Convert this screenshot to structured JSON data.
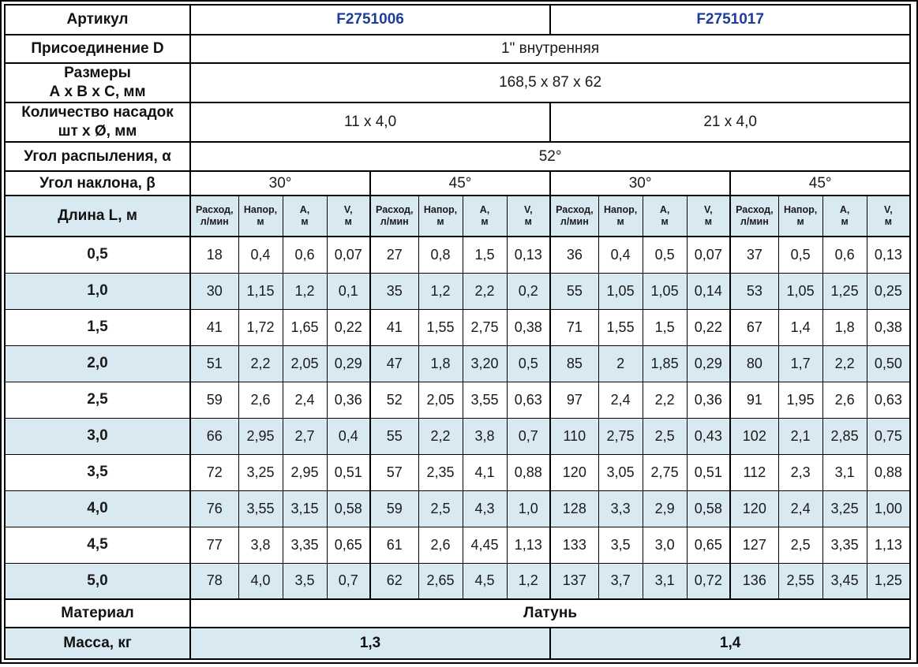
{
  "colors": {
    "article_blue": "#1e3d98",
    "stripe_blue": "#d9e9f2",
    "border_black": "#000000"
  },
  "specs": {
    "article": {
      "label": "Артикул",
      "values": [
        "F2751006",
        "F2751017"
      ]
    },
    "connection": {
      "label": "Присоединение D",
      "value": "1\" внутренняя"
    },
    "dimensions": {
      "label_line1": "Размеры",
      "label_line2": "А х В х С, мм",
      "value": "168,5 х 87 х 62"
    },
    "nozzles": {
      "label_line1": "Количество насадок",
      "label_line2": "шт х Ø, мм",
      "values": [
        "11 х 4,0",
        "21 х 4,0"
      ]
    },
    "spray_angle": {
      "label": "Угол распыления, α",
      "value": "52°"
    },
    "tilt_angle": {
      "label": "Угол наклона, β",
      "values": [
        "30°",
        "45°",
        "30°",
        "45°"
      ]
    },
    "material": {
      "label": "Материал",
      "value": "Латунь"
    },
    "mass": {
      "label": "Масса, кг",
      "values": [
        "1,3",
        "1,4"
      ]
    }
  },
  "data_table": {
    "length_header": "Длина L, м",
    "sub_columns": [
      [
        "Расход,",
        "л/мин"
      ],
      [
        "Напор,",
        "м"
      ],
      [
        "А,",
        "м"
      ],
      [
        "V,",
        "м"
      ]
    ],
    "rows": [
      {
        "length": "0,5",
        "values": [
          "18",
          "0,4",
          "0,6",
          "0,07",
          "27",
          "0,8",
          "1,5",
          "0,13",
          "36",
          "0,4",
          "0,5",
          "0,07",
          "37",
          "0,5",
          "0,6",
          "0,13"
        ]
      },
      {
        "length": "1,0",
        "values": [
          "30",
          "1,15",
          "1,2",
          "0,1",
          "35",
          "1,2",
          "2,2",
          "0,2",
          "55",
          "1,05",
          "1,05",
          "0,14",
          "53",
          "1,05",
          "1,25",
          "0,25"
        ]
      },
      {
        "length": "1,5",
        "values": [
          "41",
          "1,72",
          "1,65",
          "0,22",
          "41",
          "1,55",
          "2,75",
          "0,38",
          "71",
          "1,55",
          "1,5",
          "0,22",
          "67",
          "1,4",
          "1,8",
          "0,38"
        ]
      },
      {
        "length": "2,0",
        "values": [
          "51",
          "2,2",
          "2,05",
          "0,29",
          "47",
          "1,8",
          "3,20",
          "0,5",
          "85",
          "2",
          "1,85",
          "0,29",
          "80",
          "1,7",
          "2,2",
          "0,50"
        ]
      },
      {
        "length": "2,5",
        "values": [
          "59",
          "2,6",
          "2,4",
          "0,36",
          "52",
          "2,05",
          "3,55",
          "0,63",
          "97",
          "2,4",
          "2,2",
          "0,36",
          "91",
          "1,95",
          "2,6",
          "0,63"
        ]
      },
      {
        "length": "3,0",
        "values": [
          "66",
          "2,95",
          "2,7",
          "0,4",
          "55",
          "2,2",
          "3,8",
          "0,7",
          "110",
          "2,75",
          "2,5",
          "0,43",
          "102",
          "2,1",
          "2,85",
          "0,75"
        ]
      },
      {
        "length": "3,5",
        "values": [
          "72",
          "3,25",
          "2,95",
          "0,51",
          "57",
          "2,35",
          "4,1",
          "0,88",
          "120",
          "3,05",
          "2,75",
          "0,51",
          "112",
          "2,3",
          "3,1",
          "0,88"
        ]
      },
      {
        "length": "4,0",
        "values": [
          "76",
          "3,55",
          "3,15",
          "0,58",
          "59",
          "2,5",
          "4,3",
          "1,0",
          "128",
          "3,3",
          "2,9",
          "0,58",
          "120",
          "2,4",
          "3,25",
          "1,00"
        ]
      },
      {
        "length": "4,5",
        "values": [
          "77",
          "3,8",
          "3,35",
          "0,65",
          "61",
          "2,6",
          "4,45",
          "1,13",
          "133",
          "3,5",
          "3,0",
          "0,65",
          "127",
          "2,5",
          "3,35",
          "1,13"
        ]
      },
      {
        "length": "5,0",
        "values": [
          "78",
          "4,0",
          "3,5",
          "0,7",
          "62",
          "2,65",
          "4,5",
          "1,2",
          "137",
          "3,7",
          "3,1",
          "0,72",
          "136",
          "2,55",
          "3,45",
          "1,25"
        ]
      }
    ]
  }
}
